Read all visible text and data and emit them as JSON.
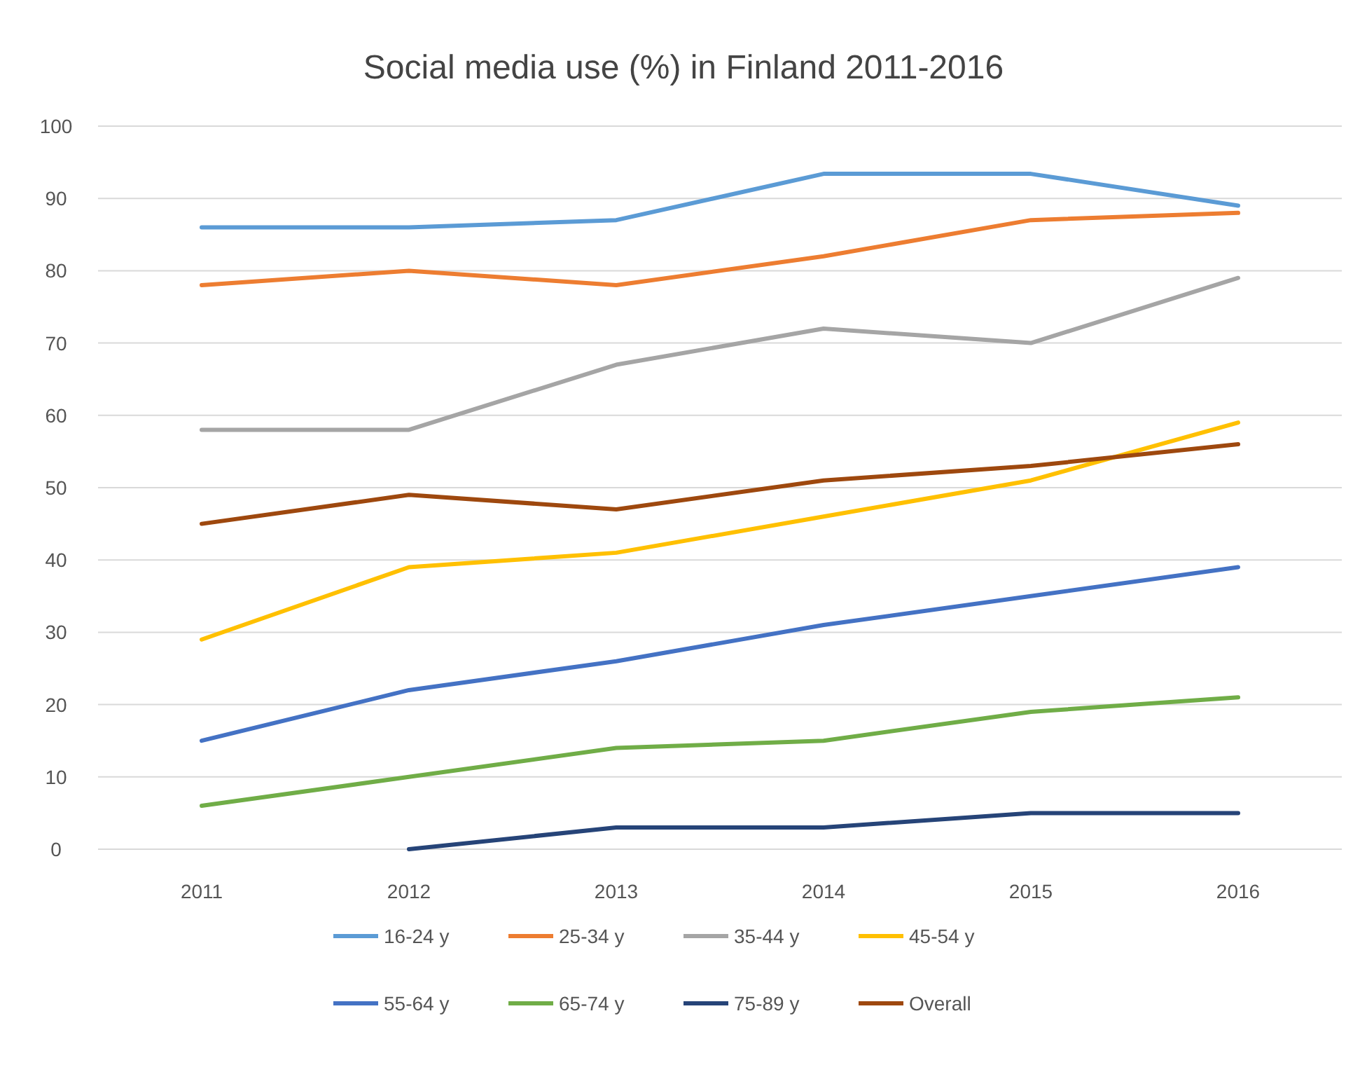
{
  "chart_data": {
    "type": "line",
    "title": "Social media use (%) in Finland 2011-2016",
    "categories": [
      "2011",
      "2012",
      "2013",
      "2014",
      "2015",
      "2016"
    ],
    "ylim": [
      0,
      100
    ],
    "yticks": [
      0,
      10,
      20,
      30,
      40,
      50,
      60,
      70,
      80,
      90,
      100
    ],
    "grid": "y",
    "legend": "bottom",
    "marker": "none",
    "line_style": "solid",
    "series": [
      {
        "name": "16-24 y",
        "color": "#5b9bd5",
        "values": [
          86,
          86,
          87,
          93.4,
          93.4,
          89
        ]
      },
      {
        "name": "25-34 y",
        "color": "#ed7d31",
        "values": [
          78,
          80,
          78,
          82,
          87,
          88
        ]
      },
      {
        "name": "35-44 y",
        "color": "#a5a5a5",
        "values": [
          58,
          58,
          67,
          72,
          70,
          79
        ]
      },
      {
        "name": "45-54 y",
        "color": "#ffc000",
        "values": [
          29,
          39,
          41,
          46,
          51,
          59
        ]
      },
      {
        "name": "55-64 y",
        "color": "#4472c4",
        "values": [
          15,
          22,
          26,
          31,
          35,
          39
        ]
      },
      {
        "name": "65-74 y",
        "color": "#70ad47",
        "values": [
          6,
          10,
          14,
          15,
          19,
          21
        ]
      },
      {
        "name": "75-89 y",
        "color": "#264478",
        "values": [
          null,
          0,
          3,
          3,
          5,
          5
        ]
      },
      {
        "name": "Overall",
        "color": "#9e480e",
        "values": [
          45,
          49,
          47,
          51,
          53,
          56
        ]
      }
    ]
  }
}
